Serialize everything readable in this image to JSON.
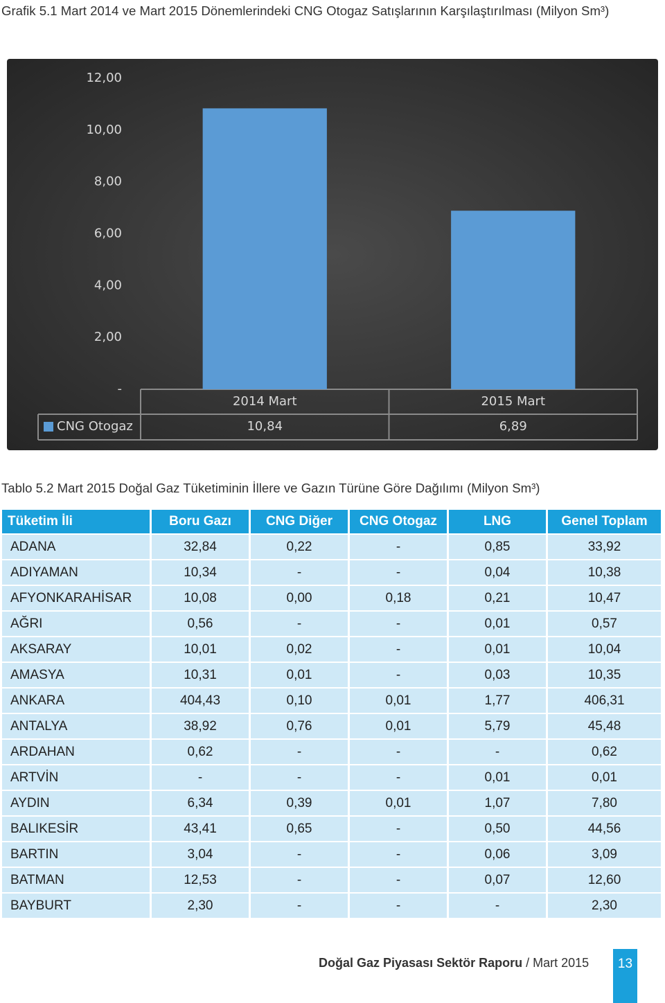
{
  "chart_data": {
    "type": "bar",
    "title": "Grafik 5.1 Mart 2014 ve Mart 2015 Dönemlerindeki CNG Otogaz Satışlarının Karşılaştırılması (Milyon Sm³)",
    "categories": [
      "2014 Mart",
      "2015 Mart"
    ],
    "series": [
      {
        "name": "CNG Otogaz",
        "color": "#5b9bd5",
        "values": [
          10.84,
          6.89
        ],
        "value_labels": [
          "10,84",
          "6,89"
        ]
      }
    ],
    "ylim": [
      0,
      12
    ],
    "yticks": [
      {
        "value": 0,
        "label": "-"
      },
      {
        "value": 2,
        "label": "2,00"
      },
      {
        "value": 4,
        "label": "4,00"
      },
      {
        "value": 6,
        "label": "6,00"
      },
      {
        "value": 8,
        "label": "8,00"
      },
      {
        "value": 10,
        "label": "10,00"
      },
      {
        "value": 12,
        "label": "12,00"
      }
    ],
    "grid": false
  },
  "table": {
    "title": "Tablo 5.2 Mart 2015 Doğal Gaz Tüketiminin İllere ve Gazın Türüne Göre Dağılımı (Milyon Sm³)",
    "header": [
      "Tüketim İli",
      "Boru Gazı",
      "CNG Diğer",
      "CNG Otogaz",
      "LNG",
      "Genel Toplam"
    ],
    "rows": [
      [
        "ADANA",
        "32,84",
        "0,22",
        "-",
        "0,85",
        "33,92"
      ],
      [
        "ADIYAMAN",
        "10,34",
        "-",
        "-",
        "0,04",
        "10,38"
      ],
      [
        "AFYONKARAHİSAR",
        "10,08",
        "0,00",
        "0,18",
        "0,21",
        "10,47"
      ],
      [
        "AĞRI",
        "0,56",
        "-",
        "-",
        "0,01",
        "0,57"
      ],
      [
        "AKSARAY",
        "10,01",
        "0,02",
        "-",
        "0,01",
        "10,04"
      ],
      [
        "AMASYA",
        "10,31",
        "0,01",
        "-",
        "0,03",
        "10,35"
      ],
      [
        "ANKARA",
        "404,43",
        "0,10",
        "0,01",
        "1,77",
        "406,31"
      ],
      [
        "ANTALYA",
        "38,92",
        "0,76",
        "0,01",
        "5,79",
        "45,48"
      ],
      [
        "ARDAHAN",
        "0,62",
        "-",
        "-",
        "-",
        "0,62"
      ],
      [
        "ARTVİN",
        "-",
        "-",
        "-",
        "0,01",
        "0,01"
      ],
      [
        "AYDIN",
        "6,34",
        "0,39",
        "0,01",
        "1,07",
        "7,80"
      ],
      [
        "BALIKESİR",
        "43,41",
        "0,65",
        "-",
        "0,50",
        "44,56"
      ],
      [
        "BARTIN",
        "3,04",
        "-",
        "-",
        "0,06",
        "3,09"
      ],
      [
        "BATMAN",
        "12,53",
        "-",
        "-",
        "0,07",
        "12,60"
      ],
      [
        "BAYBURT",
        "2,30",
        "-",
        "-",
        "-",
        "2,30"
      ]
    ]
  },
  "footer": {
    "report": "Doğal Gaz Piyasası Sektör Raporu",
    "period": "/ Mart 2015",
    "page": "13"
  }
}
